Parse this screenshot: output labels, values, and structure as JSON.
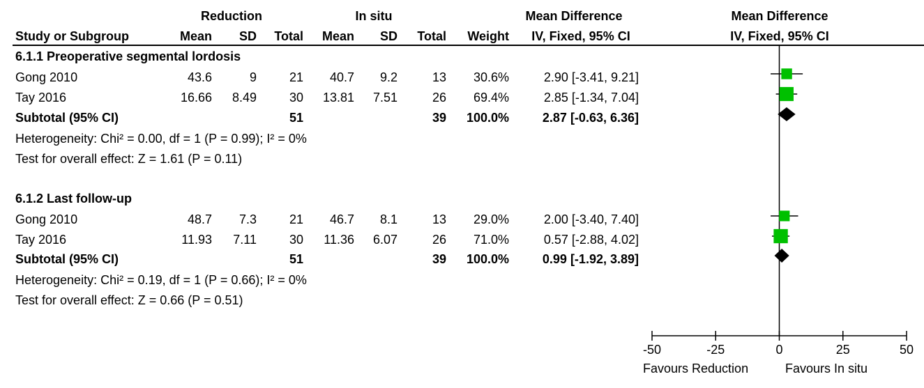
{
  "header": {
    "group1": "Reduction",
    "group2": "In situ",
    "md_table": "Mean Difference",
    "md_plot": "Mean Difference",
    "study_col": "Study or Subgroup",
    "mean1": "Mean",
    "sd1": "SD",
    "total1": "Total",
    "mean2": "Mean",
    "sd2": "SD",
    "total2": "Total",
    "weight": "Weight",
    "ci_table": "IV, Fixed, 95% CI",
    "ci_plot": "IV, Fixed, 95% CI"
  },
  "subgroups": [
    {
      "title": "6.1.1 Preoperative segmental lordosis",
      "studies": [
        {
          "name": "Gong 2010",
          "mean1": "43.6",
          "sd1": "9",
          "total1": "21",
          "mean2": "40.7",
          "sd2": "9.2",
          "total2": "13",
          "weight": "30.6%",
          "ci": "2.90 [-3.41, 9.21]"
        },
        {
          "name": "Tay 2016",
          "mean1": "16.66",
          "sd1": "8.49",
          "total1": "30",
          "mean2": "13.81",
          "sd2": "7.51",
          "total2": "26",
          "weight": "69.4%",
          "ci": "2.85 [-1.34, 7.04]"
        }
      ],
      "subtotal": {
        "label": "Subtotal (95% CI)",
        "total1": "51",
        "total2": "39",
        "weight": "100.0%",
        "ci": "2.87 [-0.63, 6.36]"
      },
      "heterogeneity": "Heterogeneity: Chi² = 0.00, df = 1 (P = 0.99); I² = 0%",
      "overall": "Test for overall effect: Z = 1.61 (P = 0.11)"
    },
    {
      "title": "6.1.2 Last follow-up",
      "studies": [
        {
          "name": "Gong 2010",
          "mean1": "48.7",
          "sd1": "7.3",
          "total1": "21",
          "mean2": "46.7",
          "sd2": "8.1",
          "total2": "13",
          "weight": "29.0%",
          "ci": "2.00 [-3.40, 7.40]"
        },
        {
          "name": "Tay 2016",
          "mean1": "11.93",
          "sd1": "7.11",
          "total1": "30",
          "mean2": "11.36",
          "sd2": "6.07",
          "total2": "26",
          "weight": "71.0%",
          "ci": "0.57 [-2.88, 4.02]"
        }
      ],
      "subtotal": {
        "label": "Subtotal (95% CI)",
        "total1": "51",
        "total2": "39",
        "weight": "100.0%",
        "ci": "0.99 [-1.92, 3.89]"
      },
      "heterogeneity": "Heterogeneity: Chi² = 0.19, df = 1 (P = 0.66); I² = 0%",
      "overall": "Test for overall effect: Z = 0.66 (P = 0.51)"
    }
  ],
  "axis": {
    "favours_left": "Favours Reduction",
    "favours_right": "Favours In situ"
  },
  "chart_data": {
    "type": "forest",
    "xlim": [
      -50,
      50
    ],
    "xticks": [
      -50,
      -25,
      0,
      25,
      50
    ],
    "xtick_labels": [
      "-50",
      "-25",
      "0",
      "25",
      "50"
    ],
    "study_color": "#00c000",
    "diamond_color": "#000000",
    "estimates": [
      {
        "kind": "study",
        "est": 2.9,
        "lo": -3.41,
        "hi": 9.21,
        "weight": 30.6
      },
      {
        "kind": "study",
        "est": 2.85,
        "lo": -1.34,
        "hi": 7.04,
        "weight": 69.4
      },
      {
        "kind": "subtotal",
        "est": 2.87,
        "lo": -0.63,
        "hi": 6.36
      },
      {
        "kind": "study",
        "est": 2.0,
        "lo": -3.4,
        "hi": 7.4,
        "weight": 29.0
      },
      {
        "kind": "study",
        "est": 0.57,
        "lo": -2.88,
        "hi": 4.02,
        "weight": 71.0
      },
      {
        "kind": "subtotal",
        "est": 0.99,
        "lo": -1.92,
        "hi": 3.89
      }
    ]
  }
}
